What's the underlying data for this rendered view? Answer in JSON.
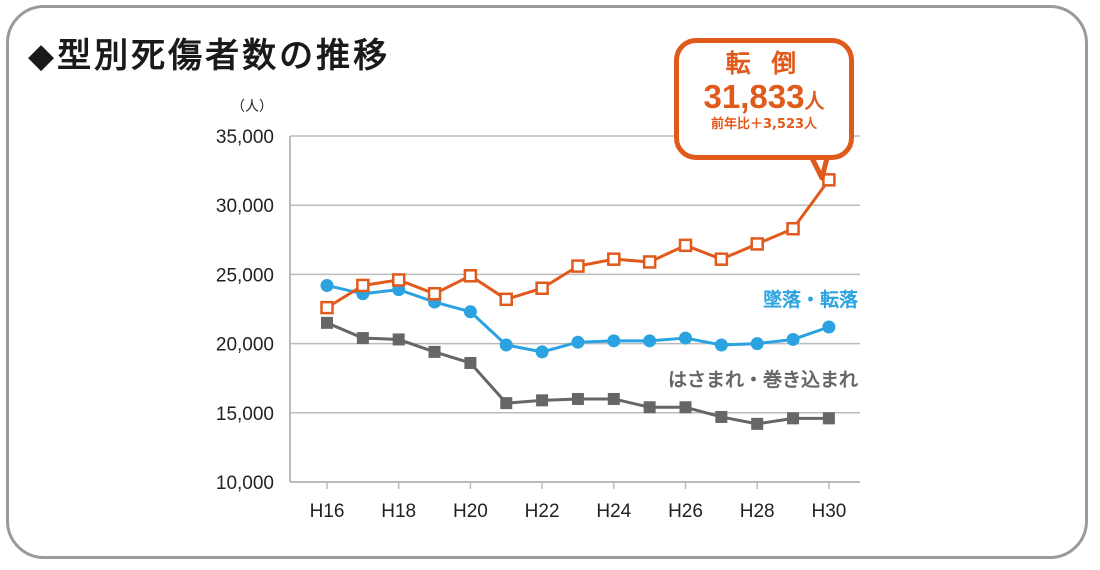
{
  "title": "◆型別死傷者数の推移",
  "unit_label": "（人）",
  "callout": {
    "title": "転 倒",
    "value": "31,833",
    "value_unit": "人",
    "change": "前年比＋3,523人"
  },
  "colors": {
    "fall_trip": "#e05a1c",
    "falling": "#2ba3e0",
    "caught": "#666666",
    "axis": "#bbbbbb"
  },
  "chart_data": {
    "type": "line",
    "title": "型別死傷者数の推移",
    "ylabel": "（人）",
    "ylim": [
      10000,
      35000
    ],
    "yticks": [
      10000,
      15000,
      20000,
      25000,
      30000,
      35000
    ],
    "ytick_labels": [
      "10,000",
      "15,000",
      "20,000",
      "25,000",
      "30,000",
      "35,000"
    ],
    "x": [
      "H16",
      "H17",
      "H18",
      "H19",
      "H20",
      "H21",
      "H22",
      "H23",
      "H24",
      "H25",
      "H26",
      "H27",
      "H28",
      "H29",
      "H30"
    ],
    "x_tick_labels": [
      "H16",
      "H18",
      "H20",
      "H22",
      "H24",
      "H26",
      "H28",
      "H30"
    ],
    "grid": "horizontal",
    "series": [
      {
        "name": "転倒",
        "key": "fall_trip",
        "marker": "hollow-square",
        "values": [
          22600,
          24200,
          24600,
          23600,
          24900,
          23200,
          24000,
          25600,
          26100,
          25900,
          27100,
          26100,
          27200,
          28300,
          31833
        ]
      },
      {
        "name": "墜落・転落",
        "key": "falling",
        "marker": "circle",
        "values": [
          24200,
          23600,
          23900,
          23000,
          22300,
          19900,
          19400,
          20100,
          20200,
          20200,
          20400,
          19900,
          20000,
          20300,
          21200
        ]
      },
      {
        "name": "はさまれ・巻き込まれ",
        "key": "caught",
        "marker": "filled-square",
        "values": [
          21500,
          20400,
          20300,
          19400,
          18600,
          15700,
          15900,
          16000,
          16000,
          15400,
          15400,
          14700,
          14200,
          14600,
          14600
        ]
      }
    ]
  }
}
